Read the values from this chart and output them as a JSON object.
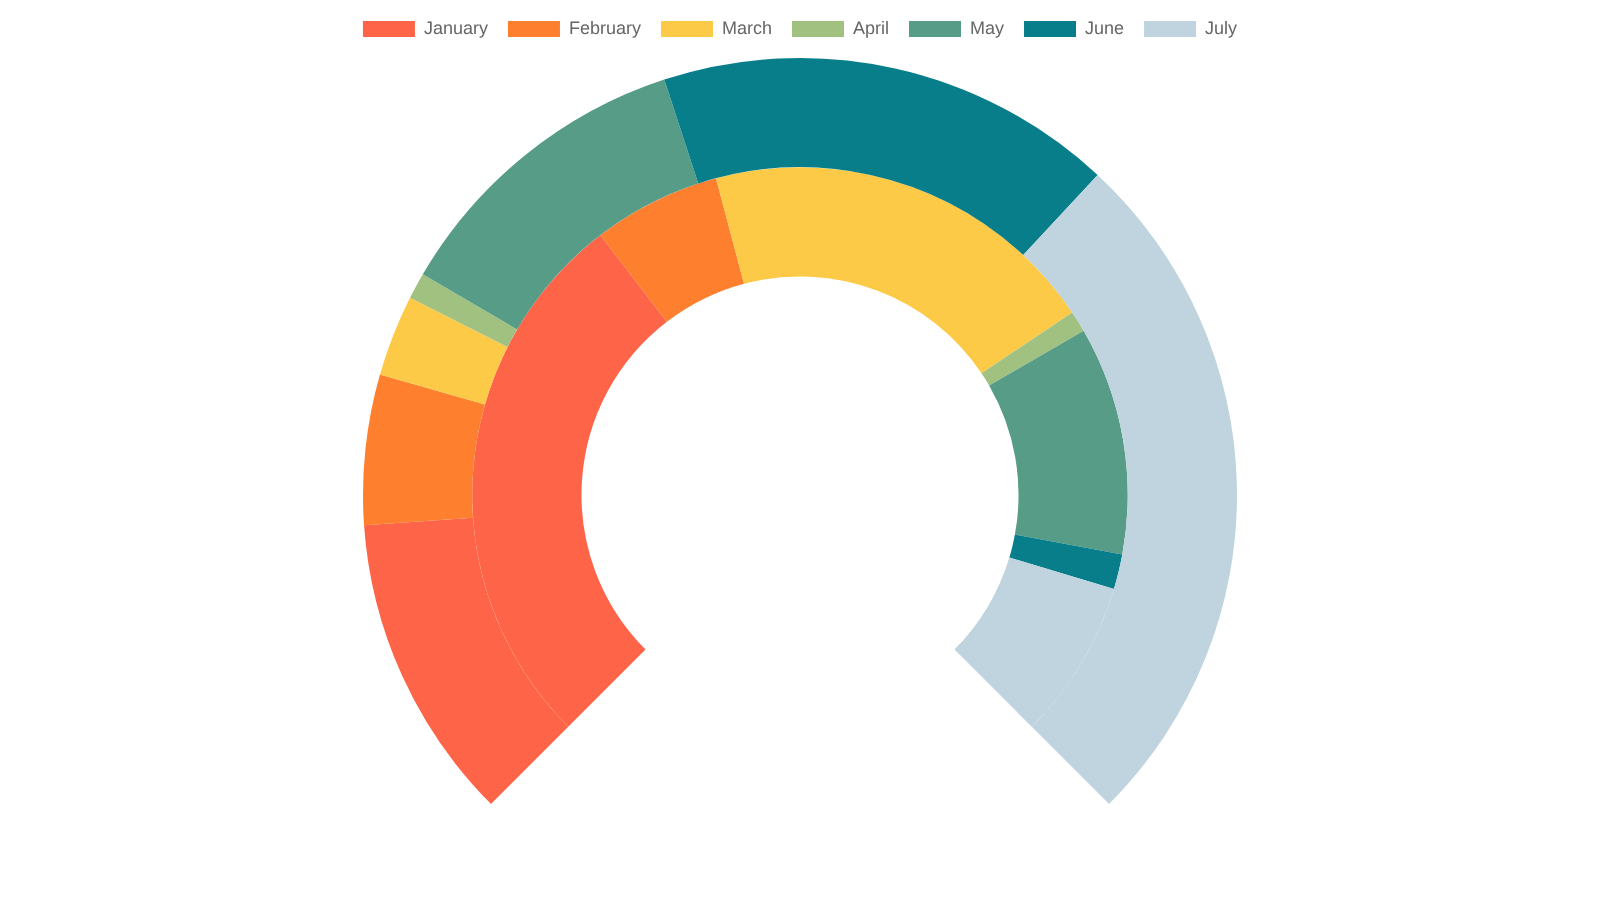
{
  "chart_data": {
    "type": "donut",
    "categories": [
      "January",
      "February",
      "March",
      "April",
      "May",
      "June",
      "July"
    ],
    "colors": [
      "#fe6447",
      "#fe7f2d",
      "#fcca46",
      "#a1c181",
      "#579c87",
      "#087e8b",
      "#bfd4de"
    ],
    "series": [
      {
        "values": [
          15.2,
          7.4,
          4.0,
          1.3,
          15.4,
          22.6,
          34.1
        ]
      },
      {
        "values": [
          36.1,
          8.4,
          26.3,
          1.4,
          15.0,
          2.3,
          10.5
        ]
      }
    ],
    "legend": "top"
  }
}
